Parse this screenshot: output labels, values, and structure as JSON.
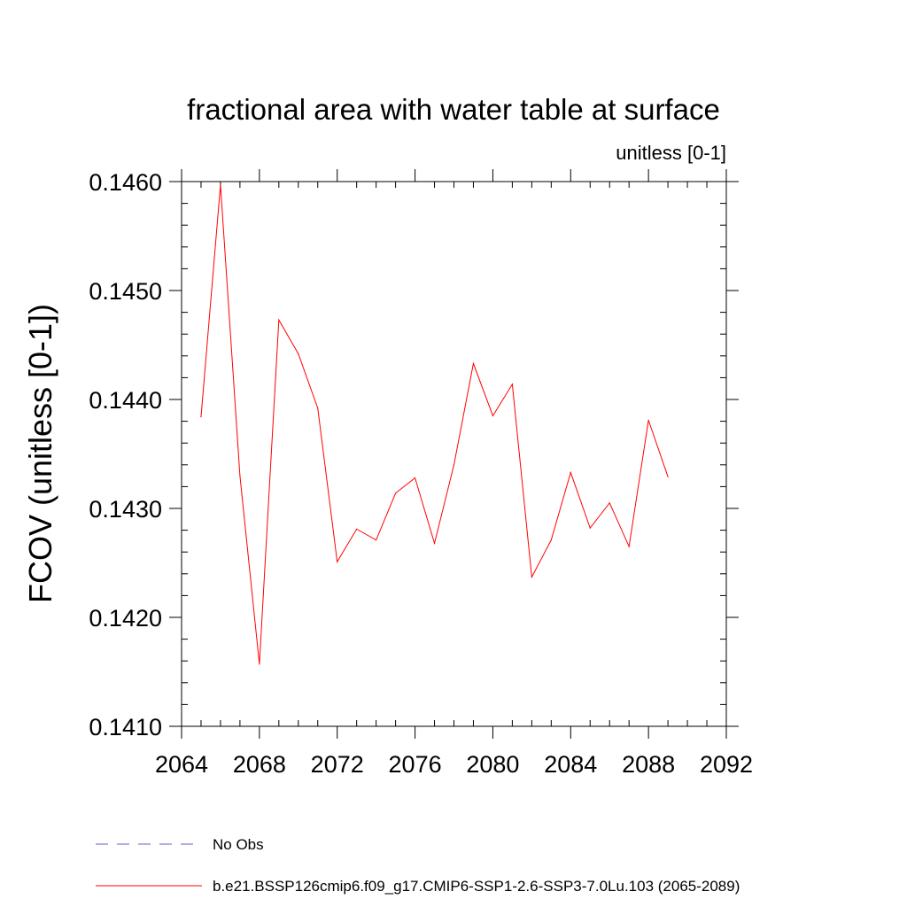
{
  "chart_data": {
    "type": "line",
    "title": "fractional area with water table at surface",
    "subtitle": "unitless [0-1]",
    "ylabel": "FCOV  (unitless [0-1])",
    "xlabel": "",
    "xlim": [
      2064,
      2092
    ],
    "ylim": [
      0.141,
      0.146
    ],
    "x_ticks": [
      "2064",
      "2068",
      "2072",
      "2076",
      "2080",
      "2084",
      "2088",
      "2092"
    ],
    "y_ticks": [
      "0.1410",
      "0.1420",
      "0.1430",
      "0.1440",
      "0.1450",
      "0.1460"
    ],
    "x_tick_values": [
      2064,
      2068,
      2072,
      2076,
      2080,
      2084,
      2088,
      2092
    ],
    "y_tick_values": [
      0.141,
      0.142,
      0.143,
      0.144,
      0.145,
      0.146
    ],
    "x_minor_step": 1,
    "y_minor_step": 0.0002,
    "grid": false,
    "legend_position": "bottom",
    "series": [
      {
        "name": "b.e21.BSSP126cmip6.f09_g17.CMIP6-SSP1-2.6-SSP3-7.0Lu.103 (2065-2089)",
        "color": "#ff0000",
        "style": "solid",
        "x": [
          2065,
          2066,
          2067,
          2068,
          2069,
          2070,
          2071,
          2072,
          2073,
          2074,
          2075,
          2076,
          2077,
          2078,
          2079,
          2080,
          2081,
          2082,
          2083,
          2084,
          2085,
          2086,
          2087,
          2088,
          2089
        ],
        "values": [
          0.14384,
          0.14597,
          0.1433,
          0.14157,
          0.14473,
          0.14442,
          0.14392,
          0.14251,
          0.14281,
          0.14271,
          0.14314,
          0.14328,
          0.14268,
          0.1434,
          0.14433,
          0.14385,
          0.14414,
          0.14237,
          0.14271,
          0.14333,
          0.14282,
          0.14305,
          0.14265,
          0.14381,
          0.14329
        ]
      }
    ],
    "legend": [
      {
        "label": "No Obs",
        "color": "#6a5acd",
        "style": "dashed"
      },
      {
        "label": "b.e21.BSSP126cmip6.f09_g17.CMIP6-SSP1-2.6-SSP3-7.0Lu.103 (2065-2089)",
        "color": "#ff0000",
        "style": "solid"
      }
    ]
  }
}
